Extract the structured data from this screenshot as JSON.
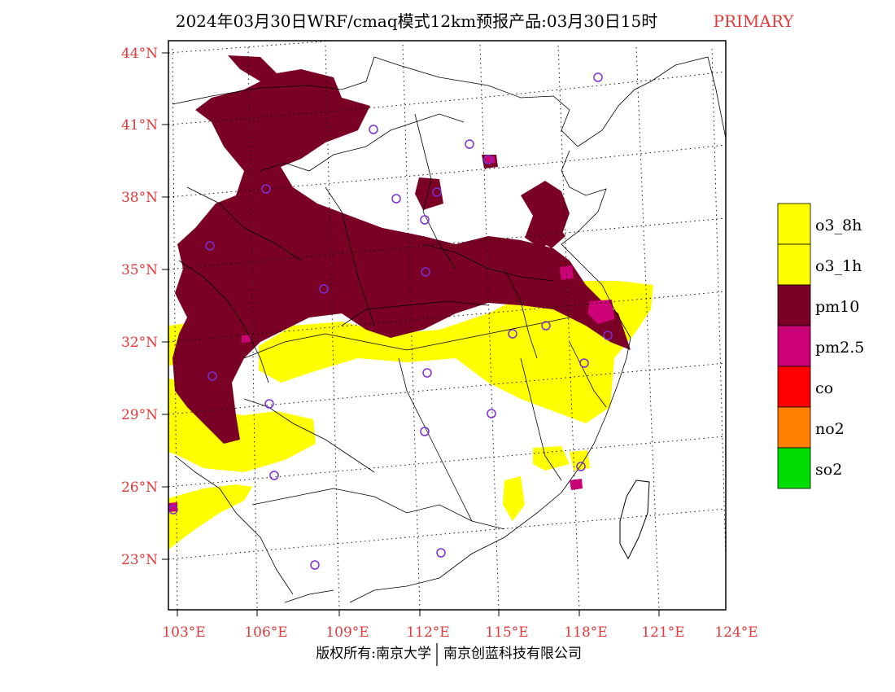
{
  "title": {
    "main": "2024年03月30日WRF/cmaq模式12km预报产品:03月30日15时",
    "tag": "PRIMARY"
  },
  "axes": {
    "lat_ticks": [
      "44°N",
      "41°N",
      "38°N",
      "35°N",
      "32°N",
      "29°N",
      "26°N",
      "23°N"
    ],
    "lon_ticks": [
      "103°E",
      "106°E",
      "109°E",
      "112°E",
      "115°E",
      "118°E",
      "121°E",
      "124°E"
    ]
  },
  "legend": [
    {
      "label": "o3_8h",
      "color": "#ffff00"
    },
    {
      "label": "o3_1h",
      "color": "#ffff00"
    },
    {
      "label": "pm10",
      "color": "#7a0026"
    },
    {
      "label": "pm2.5",
      "color": "#cc0077"
    },
    {
      "label": "co",
      "color": "#ff0000"
    },
    {
      "label": "no2",
      "color": "#ff8000"
    },
    {
      "label": "so2",
      "color": "#00dd00"
    }
  ],
  "footer": {
    "left": "版权所有:南京大学",
    "right": "南京创蓝科技有限公司"
  },
  "colors": {
    "pm10": "#7a0026",
    "pm25": "#cc0077",
    "o3": "#ffff00",
    "station": "#7b2fd6",
    "tick_label": "#e03a3a"
  }
}
